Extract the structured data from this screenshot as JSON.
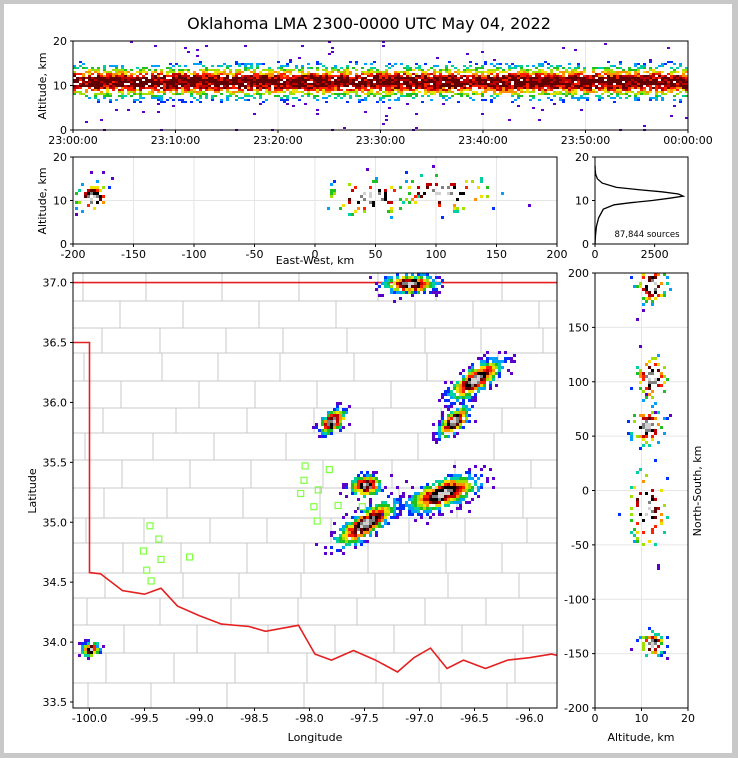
{
  "chart_data": {
    "title": "Oklahoma LMA 2300-0000 UTC May 04, 2022",
    "panels": {
      "time_height": {
        "type": "heatmap",
        "ylabel": "Altitude, km",
        "xticks": [
          "23:00:00",
          "23:10:00",
          "23:20:00",
          "23:30:00",
          "23:40:00",
          "23:50:00",
          "00:00:00"
        ],
        "yticks": [
          "0",
          "10",
          "20"
        ],
        "xlim": [
          0,
          60
        ],
        "ylim": [
          0,
          20
        ],
        "band": {
          "center_km": 11,
          "core_halfwidth_km": 2,
          "spread_km": 5
        }
      },
      "ew_altitude": {
        "type": "heatmap",
        "xlabel": "East-West, km",
        "ylabel": "Altitude, km",
        "xticks": [
          "-200",
          "-150",
          "-100",
          "-50",
          "0",
          "50",
          "100",
          "150",
          "200"
        ],
        "yticks": [
          "0",
          "10",
          "20"
        ],
        "xlim": [
          -200,
          200
        ],
        "ylim": [
          0,
          20
        ],
        "clusters": [
          {
            "x": 45,
            "y": 11,
            "sx": 22,
            "sy": 2.5
          },
          {
            "x": 105,
            "y": 12,
            "sx": 25,
            "sy": 2.5
          },
          {
            "x": -185,
            "y": 11,
            "sx": 8,
            "sy": 2
          }
        ]
      },
      "histogram": {
        "type": "line",
        "annotation": "87,844 sources",
        "xticks": [
          "0",
          "2500"
        ],
        "yticks": [
          "0",
          "10",
          "20"
        ],
        "xlim": [
          0,
          3900
        ],
        "ylim": [
          0,
          20
        ],
        "x": [
          0,
          20,
          60,
          150,
          350,
          800,
          1500,
          2400,
          3100,
          3700,
          3500,
          2800,
          1800,
          900,
          300,
          100,
          30,
          10,
          0
        ],
        "y": [
          0,
          2,
          4,
          6,
          8,
          9,
          9.5,
          10,
          10.5,
          11,
          11.5,
          12,
          12.5,
          13,
          14,
          15,
          16,
          17,
          18
        ]
      },
      "plan_view": {
        "type": "heatmap",
        "xlabel": "Longitude",
        "ylabel": "Latitude",
        "xticks": [
          "-100.0",
          "-99.5",
          "-99.0",
          "-98.5",
          "-98.0",
          "-97.5",
          "-97.0",
          "-96.5",
          "-96.0"
        ],
        "yticks": [
          "33.5",
          "34.0",
          "34.5",
          "35.0",
          "35.5",
          "36.0",
          "36.5",
          "37.0"
        ],
        "xlim": [
          -100.15,
          -95.75
        ],
        "ylim": [
          33.45,
          37.08
        ],
        "clusters": [
          {
            "lon": -97.5,
            "lat": 35.0,
            "len": 0.35,
            "wid": 0.1,
            "ang": 35
          },
          {
            "lon": -96.8,
            "lat": 35.25,
            "len": 0.35,
            "wid": 0.12,
            "ang": 20
          },
          {
            "lon": -97.5,
            "lat": 35.32,
            "len": 0.15,
            "wid": 0.09,
            "ang": 10
          },
          {
            "lon": -97.8,
            "lat": 35.85,
            "len": 0.15,
            "wid": 0.08,
            "ang": 40
          },
          {
            "lon": -96.5,
            "lat": 36.2,
            "len": 0.3,
            "wid": 0.1,
            "ang": 35
          },
          {
            "lon": -96.7,
            "lat": 35.85,
            "len": 0.2,
            "wid": 0.08,
            "ang": 45
          },
          {
            "lon": -97.1,
            "lat": 37.0,
            "len": 0.25,
            "wid": 0.08,
            "ang": 0
          },
          {
            "lon": -100.0,
            "lat": 33.95,
            "len": 0.08,
            "wid": 0.06,
            "ang": 0
          }
        ],
        "stations": [
          [
            -99.45,
            34.97
          ],
          [
            -99.37,
            34.86
          ],
          [
            -99.51,
            34.76
          ],
          [
            -99.35,
            34.69
          ],
          [
            -99.48,
            34.6
          ],
          [
            -99.44,
            34.51
          ],
          [
            -99.09,
            34.71
          ],
          [
            -98.04,
            35.47
          ],
          [
            -97.82,
            35.44
          ],
          [
            -98.05,
            35.35
          ],
          [
            -97.92,
            35.27
          ],
          [
            -98.08,
            35.24
          ],
          [
            -97.96,
            35.13
          ],
          [
            -97.74,
            35.14
          ],
          [
            -97.93,
            35.01
          ],
          [
            -97.52,
            35.13
          ]
        ]
      },
      "ns_altitude": {
        "type": "heatmap",
        "xlabel": "Altitude, km",
        "ylabel": "North-South, km",
        "xticks": [
          "0",
          "10",
          "20"
        ],
        "yticks": [
          "200",
          "150",
          "100",
          "50",
          "0",
          "-50",
          "-100",
          "-150",
          "-200"
        ],
        "xlim": [
          0,
          20
        ],
        "ylim": [
          -200,
          200
        ],
        "clusters": [
          {
            "x": 11,
            "y": -15,
            "sx": 2.5,
            "sy": 22
          },
          {
            "x": 11,
            "y": 60,
            "sx": 2,
            "sy": 10
          },
          {
            "x": 12,
            "y": 105,
            "sx": 2,
            "sy": 12
          },
          {
            "x": 12,
            "y": 190,
            "sx": 2,
            "sy": 10
          },
          {
            "x": 12,
            "y": -140,
            "sx": 1.5,
            "sy": 6
          }
        ]
      }
    }
  }
}
